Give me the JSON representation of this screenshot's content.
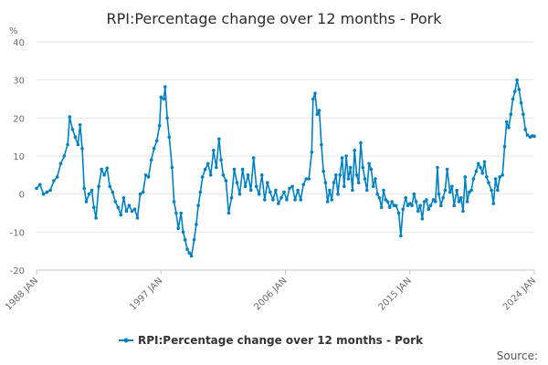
{
  "chart_data": {
    "type": "line",
    "title": "RPI:Percentage change over 12 months - Pork",
    "ylabel": "%",
    "xlabel": "",
    "ylim": [
      -20,
      40
    ],
    "yticks": [
      40,
      30,
      20,
      10,
      0,
      -10,
      -20
    ],
    "xlim": [
      1988,
      2024
    ],
    "xticks": [
      {
        "value": 1988,
        "label": "1988 JAN"
      },
      {
        "value": 1997,
        "label": "1997 JAN"
      },
      {
        "value": 2006,
        "label": "2006 JAN"
      },
      {
        "value": 2015,
        "label": "2015 JAN"
      },
      {
        "value": 2024,
        "label": "2024 JAN"
      }
    ],
    "grid": true,
    "legend_position": "bottom",
    "series": [
      {
        "name": "RPI:Percentage change over 12 months - Pork",
        "color": "#0080c0",
        "points": [
          [
            1988.0,
            1.5
          ],
          [
            1988.25,
            2.5
          ],
          [
            1988.5,
            0.0
          ],
          [
            1988.75,
            0.5
          ],
          [
            1989.0,
            1.0
          ],
          [
            1989.25,
            3.5
          ],
          [
            1989.5,
            4.5
          ],
          [
            1989.75,
            8.0
          ],
          [
            1990.0,
            10.0
          ],
          [
            1990.25,
            13.0
          ],
          [
            1990.4,
            20.3
          ],
          [
            1990.6,
            17.0
          ],
          [
            1990.8,
            15.0
          ],
          [
            1991.0,
            13.0
          ],
          [
            1991.15,
            18.2
          ],
          [
            1991.3,
            12.0
          ],
          [
            1991.45,
            1.5
          ],
          [
            1991.6,
            -2.0
          ],
          [
            1991.8,
            0.0
          ],
          [
            1992.0,
            1.0
          ],
          [
            1992.15,
            -3.5
          ],
          [
            1992.3,
            -6.3
          ],
          [
            1992.5,
            2.0
          ],
          [
            1992.7,
            6.5
          ],
          [
            1992.9,
            5.0
          ],
          [
            1993.1,
            6.8
          ],
          [
            1993.3,
            2.0
          ],
          [
            1993.5,
            0.5
          ],
          [
            1993.7,
            -2.0
          ],
          [
            1993.9,
            -3.5
          ],
          [
            1994.1,
            -5.5
          ],
          [
            1994.3,
            -1.0
          ],
          [
            1994.5,
            -4.5
          ],
          [
            1994.7,
            -3.0
          ],
          [
            1994.9,
            -4.5
          ],
          [
            1995.1,
            -4.0
          ],
          [
            1995.3,
            -6.3
          ],
          [
            1995.5,
            0.0
          ],
          [
            1995.7,
            0.5
          ],
          [
            1995.9,
            5.0
          ],
          [
            1996.1,
            4.5
          ],
          [
            1996.3,
            9.0
          ],
          [
            1996.5,
            12.0
          ],
          [
            1996.7,
            14.0
          ],
          [
            1996.9,
            18.0
          ],
          [
            1997.0,
            25.5
          ],
          [
            1997.2,
            25.0
          ],
          [
            1997.3,
            28.2
          ],
          [
            1997.45,
            20.0
          ],
          [
            1997.6,
            15.0
          ],
          [
            1997.8,
            7.0
          ],
          [
            1997.95,
            -2.0
          ],
          [
            1998.1,
            -5.0
          ],
          [
            1998.25,
            -9.0
          ],
          [
            1998.45,
            -5.0
          ],
          [
            1998.6,
            -10.0
          ],
          [
            1998.75,
            -12.0
          ],
          [
            1998.9,
            -14.5
          ],
          [
            1999.05,
            -15.5
          ],
          [
            1999.2,
            -16.3
          ],
          [
            1999.4,
            -12.0
          ],
          [
            1999.55,
            -8.0
          ],
          [
            1999.7,
            -3.0
          ],
          [
            1999.85,
            0.5
          ],
          [
            2000.0,
            4.5
          ],
          [
            2000.2,
            6.5
          ],
          [
            2000.4,
            8.0
          ],
          [
            2000.6,
            5.0
          ],
          [
            2000.8,
            11.5
          ],
          [
            2001.0,
            7.0
          ],
          [
            2001.2,
            14.5
          ],
          [
            2001.35,
            9.0
          ],
          [
            2001.5,
            5.0
          ],
          [
            2001.7,
            3.5
          ],
          [
            2001.9,
            -5.0
          ],
          [
            2002.1,
            -1.0
          ],
          [
            2002.3,
            6.5
          ],
          [
            2002.5,
            3.0
          ],
          [
            2002.7,
            0.0
          ],
          [
            2002.9,
            6.5
          ],
          [
            2003.1,
            2.0
          ],
          [
            2003.3,
            5.0
          ],
          [
            2003.5,
            1.0
          ],
          [
            2003.7,
            9.5
          ],
          [
            2003.9,
            2.0
          ],
          [
            2004.1,
            0.0
          ],
          [
            2004.3,
            5.0
          ],
          [
            2004.5,
            -1.5
          ],
          [
            2004.7,
            3.0
          ],
          [
            2004.9,
            0.5
          ],
          [
            2005.1,
            -1.5
          ],
          [
            2005.3,
            1.0
          ],
          [
            2005.5,
            -2.5
          ],
          [
            2005.7,
            -1.0
          ],
          [
            2005.9,
            0.5
          ],
          [
            2006.1,
            -1.5
          ],
          [
            2006.3,
            1.5
          ],
          [
            2006.5,
            2.0
          ],
          [
            2006.7,
            -1.5
          ],
          [
            2006.9,
            1.0
          ],
          [
            2007.1,
            -1.5
          ],
          [
            2007.3,
            2.5
          ],
          [
            2007.5,
            4.0
          ],
          [
            2007.7,
            4.0
          ],
          [
            2007.9,
            11.0
          ],
          [
            2008.0,
            25.0
          ],
          [
            2008.15,
            26.5
          ],
          [
            2008.3,
            21.0
          ],
          [
            2008.45,
            22.0
          ],
          [
            2008.6,
            13.0
          ],
          [
            2008.75,
            6.0
          ],
          [
            2008.9,
            3.0
          ],
          [
            2009.05,
            -2.0
          ],
          [
            2009.2,
            1.0
          ],
          [
            2009.35,
            -1.5
          ],
          [
            2009.5,
            3.0
          ],
          [
            2009.65,
            5.0
          ],
          [
            2009.8,
            0.0
          ],
          [
            2009.95,
            5.0
          ],
          [
            2010.1,
            9.5
          ],
          [
            2010.25,
            2.0
          ],
          [
            2010.4,
            10.0
          ],
          [
            2010.55,
            4.0
          ],
          [
            2010.7,
            7.0
          ],
          [
            2010.85,
            1.0
          ],
          [
            2011.0,
            11.5
          ],
          [
            2011.15,
            5.0
          ],
          [
            2011.3,
            3.0
          ],
          [
            2011.45,
            13.5
          ],
          [
            2011.6,
            7.0
          ],
          [
            2011.75,
            4.0
          ],
          [
            2011.9,
            1.0
          ],
          [
            2012.05,
            8.0
          ],
          [
            2012.2,
            6.5
          ],
          [
            2012.35,
            2.0
          ],
          [
            2012.5,
            4.0
          ],
          [
            2012.65,
            0.0
          ],
          [
            2012.8,
            -1.0
          ],
          [
            2012.95,
            -3.5
          ],
          [
            2013.1,
            1.0
          ],
          [
            2013.25,
            -1.5
          ],
          [
            2013.4,
            -2.0
          ],
          [
            2013.55,
            -3.5
          ],
          [
            2013.7,
            -2.0
          ],
          [
            2013.85,
            -3.0
          ],
          [
            2014.0,
            -3.0
          ],
          [
            2014.2,
            -5.0
          ],
          [
            2014.35,
            -11.0
          ],
          [
            2014.5,
            -4.0
          ],
          [
            2014.7,
            -1.0
          ],
          [
            2014.85,
            -3.0
          ],
          [
            2015.0,
            -2.5
          ],
          [
            2015.15,
            -3.0
          ],
          [
            2015.3,
            0.0
          ],
          [
            2015.45,
            -2.0
          ],
          [
            2015.6,
            -4.5
          ],
          [
            2015.75,
            -3.0
          ],
          [
            2015.9,
            -6.5
          ],
          [
            2016.05,
            -2.0
          ],
          [
            2016.2,
            -1.5
          ],
          [
            2016.35,
            -4.0
          ],
          [
            2016.5,
            -3.0
          ],
          [
            2016.7,
            -1.5
          ],
          [
            2016.85,
            -2.0
          ],
          [
            2017.0,
            7.0
          ],
          [
            2017.1,
            0.0
          ],
          [
            2017.25,
            -3.0
          ],
          [
            2017.4,
            -1.0
          ],
          [
            2017.55,
            1.0
          ],
          [
            2017.7,
            6.5
          ],
          [
            2017.9,
            0.5
          ],
          [
            2018.05,
            2.0
          ],
          [
            2018.2,
            -3.0
          ],
          [
            2018.4,
            1.0
          ],
          [
            2018.55,
            -2.0
          ],
          [
            2018.7,
            -1.0
          ],
          [
            2018.85,
            -4.5
          ],
          [
            2019.0,
            4.5
          ],
          [
            2019.15,
            -2.0
          ],
          [
            2019.3,
            0.5
          ],
          [
            2019.45,
            1.0
          ],
          [
            2019.6,
            4.0
          ],
          [
            2019.8,
            6.0
          ],
          [
            2019.95,
            8.0
          ],
          [
            2020.1,
            7.0
          ],
          [
            2020.25,
            5.5
          ],
          [
            2020.4,
            8.5
          ],
          [
            2020.55,
            4.5
          ],
          [
            2020.7,
            3.0
          ],
          [
            2020.9,
            1.0
          ],
          [
            2021.05,
            -2.5
          ],
          [
            2021.2,
            4.0
          ],
          [
            2021.35,
            1.0
          ],
          [
            2021.5,
            4.5
          ],
          [
            2021.7,
            5.0
          ],
          [
            2021.85,
            12.5
          ],
          [
            2022.0,
            19.0
          ],
          [
            2022.15,
            17.5
          ],
          [
            2022.3,
            21.0
          ],
          [
            2022.45,
            25.0
          ],
          [
            2022.6,
            27.0
          ],
          [
            2022.75,
            30.0
          ],
          [
            2022.9,
            27.5
          ],
          [
            2023.05,
            24.0
          ],
          [
            2023.2,
            21.0
          ],
          [
            2023.35,
            17.0
          ],
          [
            2023.5,
            15.5
          ],
          [
            2023.7,
            15.0
          ],
          [
            2023.85,
            15.3
          ],
          [
            2024.0,
            15.2
          ]
        ]
      }
    ]
  },
  "footer": {
    "source_label": "Source:"
  }
}
